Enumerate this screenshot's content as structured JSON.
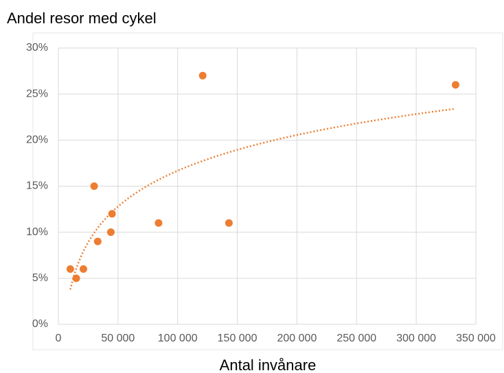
{
  "chart_data": {
    "type": "scatter",
    "title": "Andel resor med cykel",
    "x_label": "Antal invånare",
    "x": [
      10000,
      15000,
      21000,
      30000,
      33000,
      45000,
      44000,
      84000,
      121000,
      143000,
      333000
    ],
    "values": [
      6,
      5,
      6,
      15,
      9,
      12,
      10,
      11,
      27,
      11,
      26
    ],
    "color": "#ed7d31",
    "trendline": {
      "type": "logarithmic",
      "coefficients": [
        5.6,
        -47.8
      ],
      "x_range": [
        10000,
        333000
      ]
    },
    "xlim": [
      0,
      350000
    ],
    "xticks": [
      0,
      {
        "value": 50000,
        "label": "50 000"
      },
      {
        "value": 100000,
        "label": "100 000"
      },
      {
        "value": 150000,
        "label": "150 000"
      },
      {
        "value": 200000,
        "label": "200 000"
      },
      {
        "value": 250000,
        "label": "250 000"
      },
      {
        "value": 300000,
        "label": "300 000"
      },
      {
        "value": 350000,
        "label": "350 000"
      }
    ],
    "ylim": [
      0,
      30
    ],
    "yticks": [
      {
        "value": 0,
        "label": "0%"
      },
      {
        "value": 5,
        "label": "5%"
      },
      {
        "value": 10,
        "label": "10%"
      },
      {
        "value": 15,
        "label": "15%"
      },
      {
        "value": 20,
        "label": "20%"
      },
      {
        "value": 25,
        "label": "25%"
      },
      {
        "value": 30,
        "label": "30%"
      }
    ],
    "grid": true
  }
}
